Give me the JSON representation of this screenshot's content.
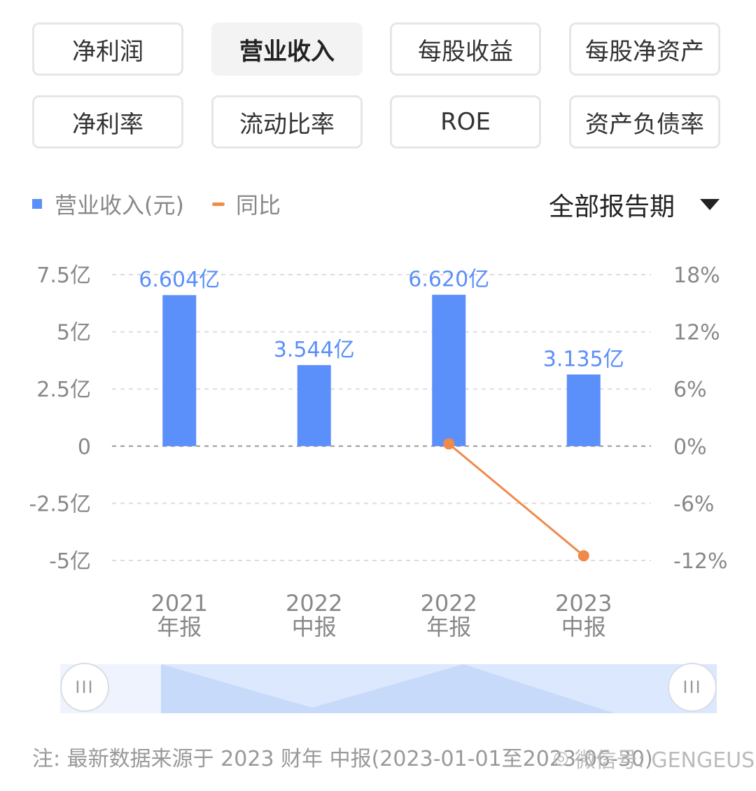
{
  "tabs": [
    "净利润",
    "营业收入",
    "每股收益",
    "每股净资产",
    "净利率",
    "流动比率",
    "ROE",
    "资产负债率"
  ],
  "active_tab": 1,
  "legend": {
    "bar_label": "营业收入(元)",
    "line_label": "同比"
  },
  "period_selector": {
    "label": "全部报告期"
  },
  "colors": {
    "bar": "#5b8ff9",
    "line": "#f08a4b",
    "label": "#5b8ff9",
    "axis_text": "#888888"
  },
  "chart_data": {
    "type": "bar",
    "categories": [
      [
        "2021",
        "年报"
      ],
      [
        "2022",
        "中报"
      ],
      [
        "2022",
        "年报"
      ],
      [
        "2023",
        "中报"
      ]
    ],
    "series": [
      {
        "name": "营业收入(元)",
        "type": "bar",
        "axis": "left",
        "values": [
          6.604,
          3.544,
          6.62,
          3.135
        ],
        "labels": [
          "6.604亿",
          "3.544亿",
          "6.620亿",
          "3.135亿"
        ]
      },
      {
        "name": "同比",
        "type": "line",
        "axis": "right",
        "values": [
          null,
          null,
          0.24,
          -11.5
        ]
      }
    ],
    "left_axis": {
      "ticks": [
        7.5,
        5,
        2.5,
        0,
        -2.5,
        -5
      ],
      "tick_labels": [
        "7.5亿",
        "5亿",
        "2.5亿",
        "0",
        "-2.5亿",
        "-5亿"
      ],
      "ylim": [
        -5,
        7.5
      ]
    },
    "right_axis": {
      "ticks": [
        18,
        12,
        6,
        0,
        -6,
        -12
      ],
      "tick_labels": [
        "18%",
        "12%",
        "6%",
        "0%",
        "-6%",
        "-12%"
      ],
      "ylim": [
        -12,
        18
      ]
    },
    "grid": "dashed"
  },
  "slider": {
    "handle_glyph": "III"
  },
  "footnote": "注: 最新数据来源于 2023 财年 中报(2023-01-01至2023-06-30)",
  "watermark": "微信号: GENGEUS"
}
